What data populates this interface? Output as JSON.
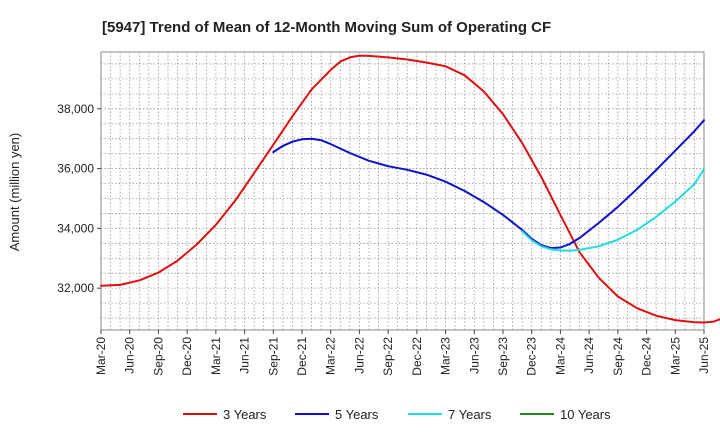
{
  "chart_data": {
    "type": "line",
    "title": "[5947]  Trend of Mean of 12-Month Moving Sum of Operating CF",
    "xlabel": "",
    "ylabel": "Amount (million yen)",
    "ylim": [
      30600,
      39900
    ],
    "yticks": [
      32000,
      34000,
      36000,
      38000
    ],
    "ytick_labels": [
      "32,000",
      "34,000",
      "36,000",
      "38,000"
    ],
    "x_tick_labels": [
      "Mar-20",
      "Jun-20",
      "Sep-20",
      "Dec-20",
      "Mar-21",
      "Jun-21",
      "Sep-21",
      "Dec-21",
      "Mar-22",
      "Jun-22",
      "Sep-22",
      "Dec-22",
      "Mar-23",
      "Jun-23",
      "Sep-23",
      "Dec-23",
      "Mar-24",
      "Jun-24",
      "Sep-24",
      "Dec-24",
      "Mar-25",
      "Jun-25"
    ],
    "grid": true,
    "legend_position": "bottom",
    "series": [
      {
        "name": "3 Years",
        "color": "#dd1111",
        "points": [
          [
            0,
            32080
          ],
          [
            2,
            32110
          ],
          [
            4,
            32260
          ],
          [
            6,
            32520
          ],
          [
            8,
            32920
          ],
          [
            10,
            33460
          ],
          [
            12,
            34120
          ],
          [
            14,
            34920
          ],
          [
            16,
            35850
          ],
          [
            18,
            36800
          ],
          [
            20,
            37750
          ],
          [
            22,
            38650
          ],
          [
            24,
            39300
          ],
          [
            25,
            39580
          ],
          [
            26,
            39720
          ],
          [
            27,
            39780
          ],
          [
            28,
            39770
          ],
          [
            30,
            39720
          ],
          [
            32,
            39650
          ],
          [
            34,
            39550
          ],
          [
            36,
            39420
          ],
          [
            38,
            39120
          ],
          [
            40,
            38580
          ],
          [
            42,
            37820
          ],
          [
            44,
            36860
          ],
          [
            46,
            35720
          ],
          [
            48,
            34450
          ],
          [
            50,
            33200
          ],
          [
            52,
            32350
          ],
          [
            54,
            31720
          ],
          [
            56,
            31330
          ],
          [
            58,
            31080
          ],
          [
            60,
            30930
          ],
          [
            62,
            30860
          ],
          [
            63,
            30850
          ],
          [
            64,
            30880
          ],
          [
            65,
            31000
          ],
          [
            66,
            31220
          ],
          [
            67,
            31520
          ],
          [
            68,
            31950
          ],
          [
            69,
            32550
          ],
          [
            70,
            33700
          ]
        ]
      },
      {
        "name": "5 Years",
        "color": "#1111cc",
        "points": [
          [
            18,
            36550
          ],
          [
            19,
            36760
          ],
          [
            20,
            36900
          ],
          [
            21,
            36980
          ],
          [
            22,
            37000
          ],
          [
            23,
            36950
          ],
          [
            24,
            36820
          ],
          [
            26,
            36520
          ],
          [
            28,
            36260
          ],
          [
            30,
            36080
          ],
          [
            32,
            35960
          ],
          [
            34,
            35800
          ],
          [
            36,
            35560
          ],
          [
            38,
            35250
          ],
          [
            40,
            34880
          ],
          [
            42,
            34450
          ],
          [
            44,
            33950
          ],
          [
            45,
            33650
          ],
          [
            46,
            33440
          ],
          [
            47,
            33340
          ],
          [
            48,
            33360
          ],
          [
            49,
            33480
          ],
          [
            50,
            33680
          ],
          [
            52,
            34180
          ],
          [
            54,
            34720
          ],
          [
            56,
            35320
          ],
          [
            58,
            35950
          ],
          [
            60,
            36600
          ],
          [
            62,
            37250
          ],
          [
            63,
            37620
          ]
        ]
      },
      {
        "name": "7 Years",
        "color": "#22dddd",
        "points": [
          [
            44,
            33900
          ],
          [
            45,
            33600
          ],
          [
            46,
            33400
          ],
          [
            47,
            33300
          ],
          [
            48,
            33260
          ],
          [
            49,
            33250
          ],
          [
            50,
            33280
          ],
          [
            52,
            33400
          ],
          [
            54,
            33620
          ],
          [
            56,
            33950
          ],
          [
            58,
            34380
          ],
          [
            60,
            34900
          ],
          [
            62,
            35480
          ],
          [
            63,
            35980
          ]
        ]
      },
      {
        "name": "10 Years",
        "color": "#228822",
        "points": []
      }
    ]
  }
}
